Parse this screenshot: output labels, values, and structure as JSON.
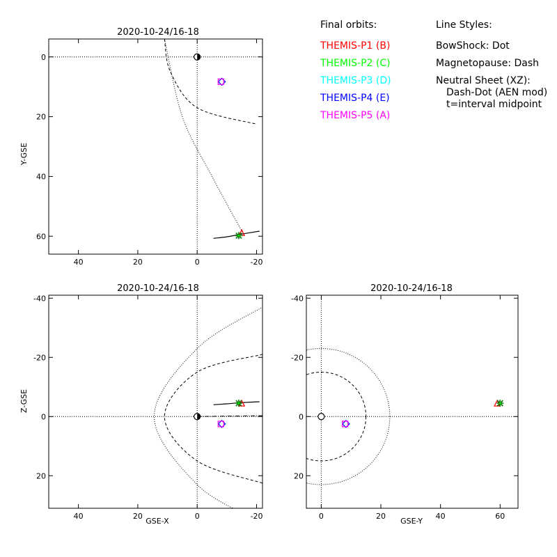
{
  "legend": {
    "orbits_title": "Final orbits:",
    "styles_title": "Line Styles:",
    "probes": [
      {
        "label": "THEMIS-P1 (B)",
        "color": "#ff0000"
      },
      {
        "label": "THEMIS-P2 (C)",
        "color": "#00ff00"
      },
      {
        "label": "THEMIS-P3 (D)",
        "color": "#00ffff"
      },
      {
        "label": "THEMIS-P4 (E)",
        "color": "#0000ff"
      },
      {
        "label": "THEMIS-P5 (A)",
        "color": "#ff00ff"
      }
    ],
    "styles": [
      "BowShock: Dot",
      "Magnetopause: Dash",
      "Neutral Sheet (XZ):",
      "Dash-Dot (AEN mod)",
      "t=interval midpoint"
    ]
  },
  "chart_data": [
    {
      "type": "scatter",
      "title": "2020-10-24/16-18",
      "xlabel": "",
      "ylabel": "Y-GSE",
      "xlim": [
        50,
        -22
      ],
      "ylim": [
        -6,
        66
      ],
      "xticks": [
        40,
        20,
        0,
        -20
      ],
      "yticks": [
        0,
        20,
        40,
        60
      ],
      "bowshock": [
        [
          11,
          -6
        ],
        [
          5,
          20
        ],
        [
          -5,
          40
        ],
        [
          -16,
          60
        ]
      ],
      "magnetopause": [
        [
          11,
          -6
        ],
        [
          9,
          5
        ],
        [
          0,
          17
        ],
        [
          -20,
          22.5
        ]
      ],
      "orbit": [
        [
          -5.5,
          60.7
        ],
        [
          -10,
          60.2
        ],
        [
          -15,
          59.3
        ],
        [
          -21,
          58.3
        ]
      ],
      "markers": [
        {
          "probe": "P1",
          "symbol": "triangle",
          "x": -15,
          "y": 58.8,
          "color": "#ff0000"
        },
        {
          "probe": "P2",
          "symbol": "star",
          "x": -14,
          "y": 59.8,
          "color": "#00ff00"
        },
        {
          "probe": "P3",
          "symbol": "diamond",
          "x": -8.3,
          "y": 8.3,
          "color": "#00ffff"
        },
        {
          "probe": "P4",
          "symbol": "diamond",
          "x": -8.3,
          "y": 8.3,
          "color": "#0000ff"
        },
        {
          "probe": "P5",
          "symbol": "square",
          "x": -8,
          "y": 8.3,
          "color": "#ff00ff"
        }
      ],
      "earth": [
        0,
        0
      ]
    },
    {
      "type": "scatter",
      "title": "2020-10-24/16-18",
      "xlabel": "GSE-X",
      "ylabel": "Z-GSE",
      "xlim": [
        50,
        -22
      ],
      "ylim": [
        -41,
        31
      ],
      "xticks": [
        40,
        20,
        0,
        -20
      ],
      "yticks": [
        20,
        0,
        -20,
        -40
      ],
      "bowshock": [
        [
          -20,
          35
        ],
        [
          0,
          23
        ],
        [
          14.5,
          0
        ],
        [
          0,
          -23
        ],
        [
          -22,
          -37
        ]
      ],
      "magnetopause": [
        [
          -22,
          22.5
        ],
        [
          0,
          15
        ],
        [
          11,
          0
        ],
        [
          0,
          -15
        ],
        [
          -22,
          -21
        ]
      ],
      "neutral_sheet": [
        [
          0,
          0
        ],
        [
          -22,
          -0.3
        ]
      ],
      "orbit": [
        [
          -5.5,
          -4
        ],
        [
          -10,
          -4.3
        ],
        [
          -15,
          -4.7
        ],
        [
          -21,
          -5
        ]
      ],
      "markers": [
        {
          "probe": "P1",
          "symbol": "triangle",
          "x": -15,
          "y": -4.5,
          "color": "#ff0000"
        },
        {
          "probe": "P2",
          "symbol": "star",
          "x": -14,
          "y": -4.5,
          "color": "#00ff00"
        },
        {
          "probe": "P3",
          "symbol": "diamond",
          "x": -8.3,
          "y": 2.5,
          "color": "#00ffff"
        },
        {
          "probe": "P4",
          "symbol": "diamond",
          "x": -8.3,
          "y": 2.5,
          "color": "#0000ff"
        },
        {
          "probe": "P5",
          "symbol": "square",
          "x": -8,
          "y": 2.5,
          "color": "#ff00ff"
        }
      ],
      "earth": [
        0,
        0
      ]
    },
    {
      "type": "scatter",
      "title": "2020-10-24/16-18",
      "xlabel": "GSE-Y",
      "ylabel": "",
      "xlim": [
        -5,
        66
      ],
      "ylim": [
        -41,
        31
      ],
      "xticks": [
        0,
        20,
        40,
        60
      ],
      "yticks": [
        20,
        0,
        -20,
        -40
      ],
      "bowshock_radius": 23,
      "magnetopause_radius": 15,
      "markers": [
        {
          "probe": "P1",
          "symbol": "triangle",
          "x": 59,
          "y": -4.5,
          "color": "#ff0000"
        },
        {
          "probe": "P2",
          "symbol": "star",
          "x": 60,
          "y": -4.5,
          "color": "#00ff00"
        },
        {
          "probe": "P3",
          "symbol": "diamond",
          "x": 8.3,
          "y": 2.5,
          "color": "#00ffff"
        },
        {
          "probe": "P4",
          "symbol": "diamond",
          "x": 8.3,
          "y": 2.5,
          "color": "#0000ff"
        },
        {
          "probe": "P5",
          "symbol": "square",
          "x": 8,
          "y": 2.5,
          "color": "#ff00ff"
        }
      ],
      "earth": [
        0,
        0
      ]
    }
  ]
}
